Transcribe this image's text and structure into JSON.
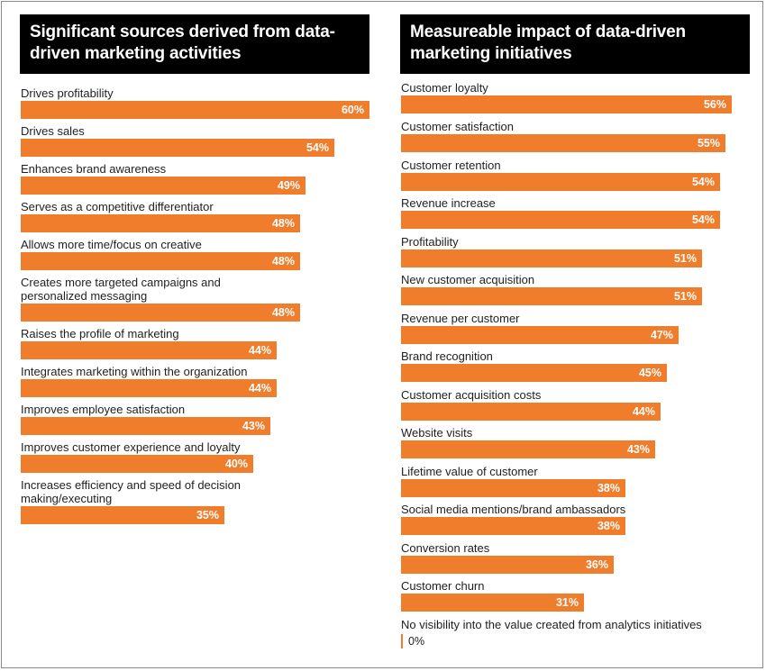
{
  "colors": {
    "bar": "#ef7d2b",
    "title_bg": "#000000",
    "title_text": "#ffffff"
  },
  "chart_data": [
    {
      "type": "bar",
      "orientation": "horizontal",
      "title": "Significant sources derived from data-driven marketing activities",
      "categories": [
        "Drives profitability",
        "Drives sales",
        "Enhances brand awareness",
        "Serves as a competitive differentiator",
        "Allows more time/focus on creative",
        "Creates more targeted campaigns and personalized messaging",
        "Raises the profile of marketing",
        "Integrates marketing within the organization",
        "Improves employee satisfaction",
        "Improves customer experience and loyalty",
        "Increases efficiency and speed of decision making/executing"
      ],
      "values": [
        60,
        54,
        49,
        48,
        48,
        48,
        44,
        44,
        43,
        40,
        35
      ],
      "value_labels": [
        "60%",
        "54%",
        "49%",
        "48%",
        "48%",
        "48%",
        "44%",
        "44%",
        "43%",
        "40%",
        "35%"
      ],
      "xlim": [
        0,
        60
      ]
    },
    {
      "type": "bar",
      "orientation": "horizontal",
      "title": "Measureable impact of data-driven marketing initiatives",
      "categories": [
        "Customer loyalty",
        "Customer satisfaction",
        "Customer retention",
        "Revenue increase",
        "Profitability",
        "New customer acquisition",
        "Revenue per customer",
        "Brand recognition",
        "Customer acquisition costs",
        "Website visits",
        "Lifetime value of customer",
        "Social media mentions/brand ambassadors",
        "Conversion rates",
        "Customer churn",
        "No visibility into the value created from analytics initiatives"
      ],
      "values": [
        56,
        55,
        54,
        54,
        51,
        51,
        47,
        45,
        44,
        43,
        38,
        38,
        36,
        31,
        0
      ],
      "value_labels": [
        "56%",
        "55%",
        "54%",
        "54%",
        "51%",
        "51%",
        "47%",
        "45%",
        "44%",
        "43%",
        "38%",
        "38%",
        "36%",
        "31%",
        "0%"
      ],
      "xlim": [
        0,
        56
      ]
    }
  ]
}
